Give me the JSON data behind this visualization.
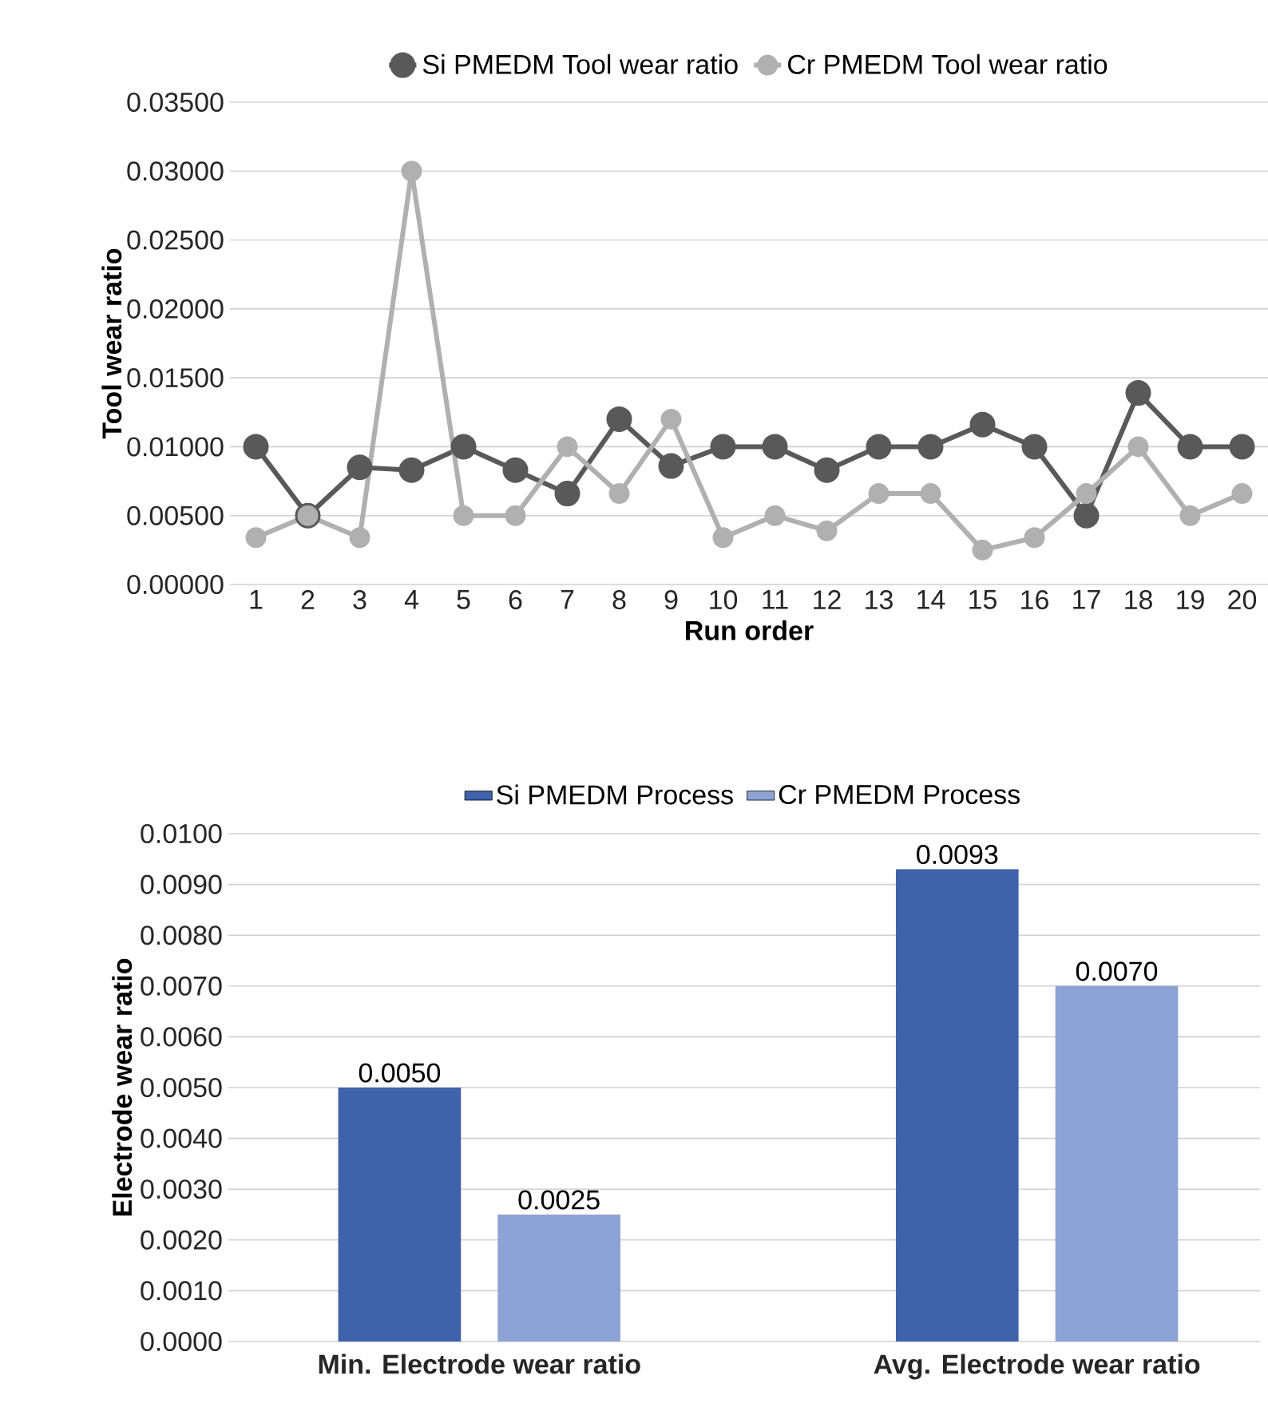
{
  "chart_data": [
    {
      "type": "line",
      "xlabel": "Run order",
      "ylabel": "Tool wear ratio",
      "categories": [
        "1",
        "2",
        "3",
        "4",
        "5",
        "6",
        "7",
        "8",
        "9",
        "10",
        "11",
        "12",
        "13",
        "14",
        "15",
        "16",
        "17",
        "18",
        "19",
        "20"
      ],
      "series": [
        {
          "name": "Si PMEDM Tool wear ratio",
          "color": "#595959",
          "values": [
            0.01,
            0.005,
            0.0085,
            0.0083,
            0.01,
            0.0083,
            0.0066,
            0.012,
            0.0086,
            0.01,
            0.01,
            0.0083,
            0.01,
            0.01,
            0.0116,
            0.01,
            0.005,
            0.0139,
            0.01,
            0.01
          ]
        },
        {
          "name": "Cr PMEDM Tool wear ratio",
          "color": "#b0b0b0",
          "values": [
            0.0034,
            0.005,
            0.0034,
            0.03,
            0.005,
            0.005,
            0.01,
            0.0066,
            0.012,
            0.0034,
            0.005,
            0.0039,
            0.0066,
            0.0066,
            0.0025,
            0.0034,
            0.0066,
            0.01,
            0.005,
            0.0066
          ]
        }
      ],
      "ylim": [
        0,
        0.035
      ],
      "yticks": [
        {
          "value": 0,
          "label": "0.00000"
        },
        {
          "value": 0.005,
          "label": "0.00500"
        },
        {
          "value": 0.01,
          "label": "0.01000"
        },
        {
          "value": 0.015,
          "label": "0.01500"
        },
        {
          "value": 0.02,
          "label": "0.02000"
        },
        {
          "value": 0.025,
          "label": "0.02500"
        },
        {
          "value": 0.03,
          "label": "0.03000"
        },
        {
          "value": 0.035,
          "label": "0.03500"
        }
      ],
      "grid": "y",
      "legend": "top",
      "marker": "circle",
      "line_style": "solid"
    },
    {
      "type": "bar",
      "ylabel": "Electrode wear ratio",
      "categories": [
        "Min. Electrode wear ratio",
        "Avg. Electrode wear ratio"
      ],
      "series": [
        {
          "name": "Si PMEDM Process",
          "color": "#3f62ab",
          "values": [
            0.005,
            0.0093
          ],
          "value_labels": [
            "0.0050",
            "0.0093"
          ]
        },
        {
          "name": "Cr PMEDM Process",
          "color": "#8ea3d5",
          "values": [
            0.0025,
            0.007
          ],
          "value_labels": [
            "0.0025",
            "0.0070"
          ]
        }
      ],
      "ylim": [
        0,
        0.01
      ],
      "yticks": [
        {
          "value": 0,
          "label": "0.0000"
        },
        {
          "value": 0.001,
          "label": "0.0010"
        },
        {
          "value": 0.002,
          "label": "0.0020"
        },
        {
          "value": 0.003,
          "label": "0.0030"
        },
        {
          "value": 0.004,
          "label": "0.0040"
        },
        {
          "value": 0.005,
          "label": "0.0050"
        },
        {
          "value": 0.006,
          "label": "0.0060"
        },
        {
          "value": 0.007,
          "label": "0.0070"
        },
        {
          "value": 0.008,
          "label": "0.0080"
        },
        {
          "value": 0.009,
          "label": "0.0090"
        },
        {
          "value": 0.01,
          "label": "0.0100"
        }
      ],
      "grid": "y",
      "legend": "top"
    }
  ]
}
